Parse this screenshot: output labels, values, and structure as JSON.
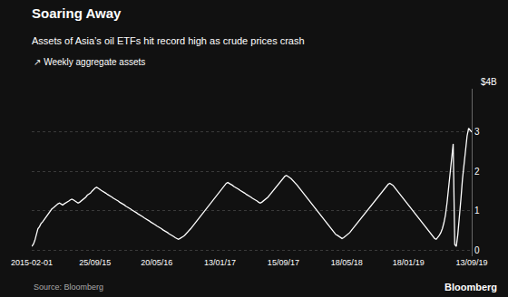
{
  "chart_data": {
    "type": "line",
    "title": "Soaring Away",
    "subtitle": "Assets of Asia’s oil ETFs hit record high as crude prices crash",
    "ylabel": "$4B",
    "annotations": [
      "↗ Weekly aggregate assets",
      "Source: Bloomberg",
      "Bloomberg"
    ],
    "categories": [
      "2015-02-01",
      null,
      null,
      null,
      null,
      null,
      null,
      null,
      null,
      null,
      null,
      null,
      null,
      null,
      null,
      null,
      null,
      null,
      null,
      null,
      null,
      null,
      null,
      null,
      null,
      null,
      null,
      null,
      null,
      null,
      null,
      null,
      null,
      null,
      null,
      null,
      null,
      null,
      null,
      null,
      null,
      "25/09/15",
      null,
      null,
      null,
      null,
      null,
      null,
      null,
      null,
      null,
      null,
      null,
      null,
      null,
      null,
      null,
      null,
      null,
      null,
      null,
      null,
      null,
      null,
      null,
      null,
      null,
      null,
      null,
      null,
      null,
      null,
      null,
      null,
      null,
      null,
      null,
      null,
      null,
      null,
      null,
      "20/05/16",
      null,
      null,
      null,
      null,
      null,
      null,
      null,
      null,
      null,
      null,
      null,
      null,
      null,
      null,
      null,
      null,
      null,
      null,
      null,
      null,
      null,
      null,
      null,
      null,
      null,
      null,
      null,
      null,
      null,
      null,
      null,
      null,
      null,
      null,
      null,
      null,
      null,
      null,
      null,
      null,
      "13/01/17",
      null,
      null,
      null,
      null,
      null,
      null,
      null,
      null,
      null,
      null,
      null,
      null,
      null,
      null,
      null,
      null,
      null,
      null,
      null,
      null,
      null,
      null,
      null,
      null,
      null,
      null,
      null,
      null,
      null,
      null,
      null,
      null,
      null,
      null,
      null,
      null,
      null,
      null,
      null,
      null,
      "15/09/17",
      null,
      null,
      null,
      null,
      null,
      null,
      null,
      null,
      null,
      null,
      null,
      null,
      null,
      null,
      null,
      null,
      null,
      null,
      null,
      null,
      null,
      null,
      null,
      null,
      null,
      null,
      null,
      null,
      null,
      null,
      null,
      null,
      null,
      null,
      null,
      null,
      null,
      null,
      null,
      null,
      "18/05/18",
      null,
      null,
      null,
      null,
      null,
      null,
      null,
      null,
      null,
      null,
      null,
      null,
      null,
      null,
      null,
      null,
      null,
      null,
      null,
      null,
      null,
      null,
      null,
      null,
      null,
      null,
      null,
      null,
      null,
      null,
      null,
      null,
      null,
      null,
      null,
      null,
      null,
      null,
      null,
      "18/01/19",
      null,
      null,
      null,
      null,
      null,
      null,
      null,
      null,
      null,
      null,
      null,
      null,
      null,
      null,
      null,
      null,
      null,
      null,
      null,
      null,
      null,
      null,
      null,
      null,
      null,
      null,
      null,
      null,
      null,
      null,
      null,
      null,
      null,
      null,
      null,
      null,
      null,
      null,
      null,
      null,
      "13/09/19"
    ],
    "values": [
      0.1,
      0.15,
      0.25,
      0.42,
      0.55,
      0.6,
      0.68,
      0.72,
      0.78,
      0.82,
      0.88,
      0.95,
      1.0,
      1.05,
      1.08,
      1.12,
      1.15,
      1.18,
      1.2,
      1.18,
      1.15,
      1.18,
      1.2,
      1.22,
      1.25,
      1.28,
      1.3,
      1.28,
      1.25,
      1.22,
      1.2,
      1.22,
      1.25,
      1.28,
      1.3,
      1.35,
      1.4,
      1.42,
      1.45,
      1.5,
      1.55,
      1.58,
      1.6,
      1.58,
      1.55,
      1.52,
      1.5,
      1.48,
      1.45,
      1.42,
      1.4,
      1.38,
      1.35,
      1.32,
      1.3,
      1.28,
      1.25,
      1.22,
      1.2,
      1.18,
      1.15,
      1.12,
      1.1,
      1.08,
      1.05,
      1.02,
      1.0,
      0.98,
      0.95,
      0.92,
      0.9,
      0.88,
      0.85,
      0.82,
      0.8,
      0.78,
      0.75,
      0.72,
      0.7,
      0.68,
      0.65,
      0.62,
      0.6,
      0.58,
      0.55,
      0.52,
      0.5,
      0.48,
      0.45,
      0.42,
      0.4,
      0.38,
      0.35,
      0.32,
      0.3,
      0.28,
      0.3,
      0.32,
      0.35,
      0.38,
      0.42,
      0.45,
      0.5,
      0.55,
      0.6,
      0.65,
      0.7,
      0.75,
      0.8,
      0.85,
      0.9,
      0.95,
      1.0,
      1.05,
      1.1,
      1.15,
      1.2,
      1.25,
      1.3,
      1.35,
      1.4,
      1.45,
      1.5,
      1.55,
      1.6,
      1.65,
      1.7,
      1.72,
      1.7,
      1.68,
      1.65,
      1.62,
      1.6,
      1.58,
      1.55,
      1.52,
      1.5,
      1.48,
      1.45,
      1.42,
      1.4,
      1.38,
      1.35,
      1.32,
      1.3,
      1.28,
      1.25,
      1.22,
      1.2,
      1.22,
      1.25,
      1.28,
      1.32,
      1.35,
      1.4,
      1.45,
      1.5,
      1.55,
      1.6,
      1.65,
      1.7,
      1.75,
      1.8,
      1.85,
      1.88,
      1.9,
      1.88,
      1.85,
      1.82,
      1.78,
      1.75,
      1.7,
      1.65,
      1.6,
      1.55,
      1.5,
      1.45,
      1.4,
      1.35,
      1.3,
      1.25,
      1.2,
      1.15,
      1.1,
      1.05,
      1.0,
      0.95,
      0.9,
      0.85,
      0.8,
      0.75,
      0.7,
      0.65,
      0.6,
      0.55,
      0.5,
      0.45,
      0.4,
      0.38,
      0.35,
      0.32,
      0.3,
      0.32,
      0.35,
      0.38,
      0.42,
      0.45,
      0.5,
      0.55,
      0.6,
      0.65,
      0.7,
      0.75,
      0.8,
      0.85,
      0.9,
      0.95,
      1.0,
      1.05,
      1.1,
      1.15,
      1.2,
      1.25,
      1.3,
      1.35,
      1.4,
      1.45,
      1.5,
      1.55,
      1.6,
      1.65,
      1.68,
      1.7,
      1.68,
      1.65,
      1.6,
      1.55,
      1.5,
      1.45,
      1.4,
      1.35,
      1.3,
      1.25,
      1.2,
      1.15,
      1.1,
      1.05,
      1.0,
      0.95,
      0.9,
      0.85,
      0.8,
      0.75,
      0.7,
      0.65,
      0.6,
      0.55,
      0.5,
      0.45,
      0.4,
      0.35,
      0.3,
      0.28,
      0.32,
      0.38,
      0.45,
      0.55,
      0.7,
      0.9,
      1.2,
      1.55,
      1.9,
      2.3,
      2.7,
      0.15,
      0.1,
      0.4,
      0.8,
      1.3,
      1.8,
      2.2,
      2.6,
      2.9,
      3.1,
      3.05,
      3.0
    ],
    "color": "#ffffff",
    "ylim": [
      -0.15,
      4.1
    ],
    "yticks": [
      0,
      1,
      2,
      3
    ],
    "grid": true
  }
}
